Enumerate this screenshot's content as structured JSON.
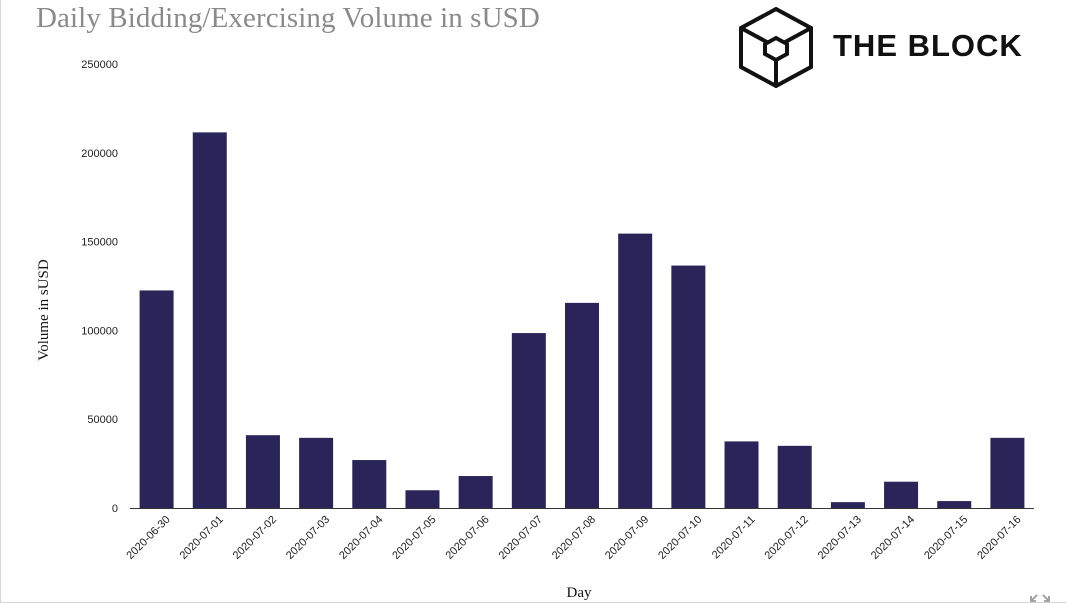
{
  "header": {
    "title": "Daily Bidding/Exercising Volume in sUSD",
    "logo_text": "THE BLOCK",
    "logo_icon": "cube-icon"
  },
  "controls": {
    "expand_icon": "expand-icon"
  },
  "colors": {
    "bar": "#2b2459",
    "title": "#8a8a8a",
    "axis_text": "#222222"
  },
  "chart_data": {
    "type": "bar",
    "title": "Daily Bidding/Exercising Volume in sUSD",
    "xlabel": "Day",
    "ylabel": "Volume in sUSD",
    "ylim": [
      0,
      250000
    ],
    "yticks": [
      0,
      50000,
      100000,
      150000,
      200000,
      250000
    ],
    "grid": false,
    "legend": "none",
    "categories": [
      "2020-06-30",
      "2020-07-01",
      "2020-07-02",
      "2020-07-03",
      "2020-07-04",
      "2020-07-05",
      "2020-07-06",
      "2020-07-07",
      "2020-07-08",
      "2020-07-09",
      "2020-07-10",
      "2020-07-11",
      "2020-07-12",
      "2020-07-13",
      "2020-07-14",
      "2020-07-15",
      "2020-07-16"
    ],
    "values": [
      122500,
      211500,
      41000,
      39500,
      27000,
      10000,
      18000,
      98500,
      115500,
      154500,
      136500,
      37500,
      35000,
      3300,
      14800,
      3900,
      39500
    ]
  }
}
